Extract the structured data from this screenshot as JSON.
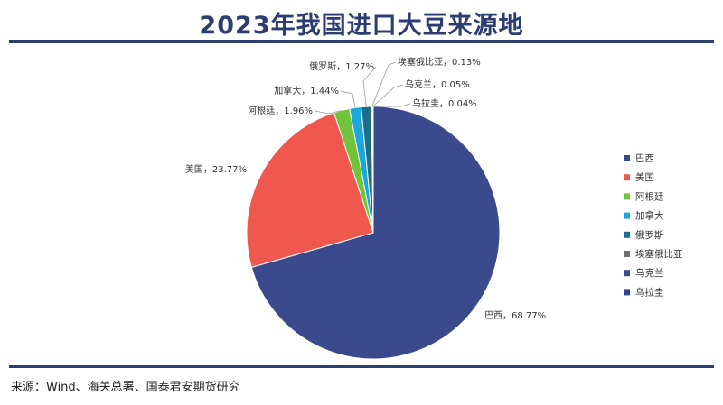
{
  "header": {
    "title": "2023年我国进口大豆来源地"
  },
  "footer": {
    "source": "来源：Wind、海关总署、国泰君安期货研究"
  },
  "chart_data": {
    "type": "pie",
    "categories": [
      "巴西",
      "美国",
      "阿根廷",
      "加拿大",
      "俄罗斯",
      "埃塞俄比亚",
      "乌克兰",
      "乌拉圭"
    ],
    "values": [
      68.77,
      23.77,
      1.96,
      1.44,
      1.27,
      0.13,
      0.05,
      0.04
    ],
    "data_labels": [
      "巴西，68.77%",
      "美国，23.77%",
      "阿根廷，1.96%",
      "加拿大，1.44%",
      "俄罗斯，1.27%",
      "埃塞俄比亚，0.13%",
      "乌克兰，0.05%",
      "乌拉圭，0.04%"
    ],
    "colors": [
      "#3b4a8c",
      "#f0584f",
      "#6fc43c",
      "#1ba6dc",
      "#1c6f8c",
      "#707070",
      "#3b4a8c",
      "#2f4287"
    ],
    "legend_position": "right",
    "title": "2023年我国进口大豆来源地"
  }
}
